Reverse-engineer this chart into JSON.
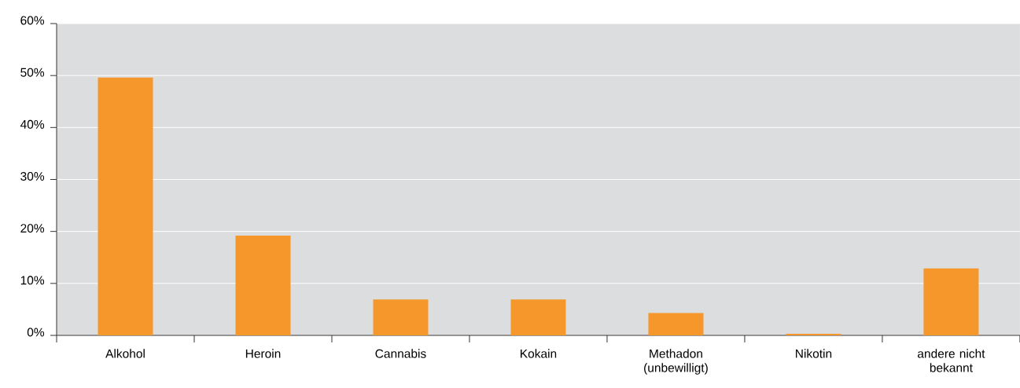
{
  "chart_data": {
    "type": "bar",
    "categories": [
      "Alkohol",
      "Heroin",
      "Cannabis",
      "Kokain",
      "Methadon (unbewilligt)",
      "Nikotin",
      "andere nicht bekannt"
    ],
    "values": [
      49.6,
      19.2,
      6.9,
      6.9,
      4.3,
      0.3,
      12.9
    ],
    "color": "#f5972a",
    "ylim": [
      0,
      60
    ],
    "yticks": [
      {
        "value": 0,
        "label": "0%"
      },
      {
        "value": 10,
        "label": "10%"
      },
      {
        "value": 20,
        "label": "20%"
      },
      {
        "value": 30,
        "label": "30%"
      },
      {
        "value": 40,
        "label": "40%"
      },
      {
        "value": 50,
        "label": "50%"
      },
      {
        "value": 60,
        "label": "60%"
      }
    ],
    "grid": "y"
  }
}
